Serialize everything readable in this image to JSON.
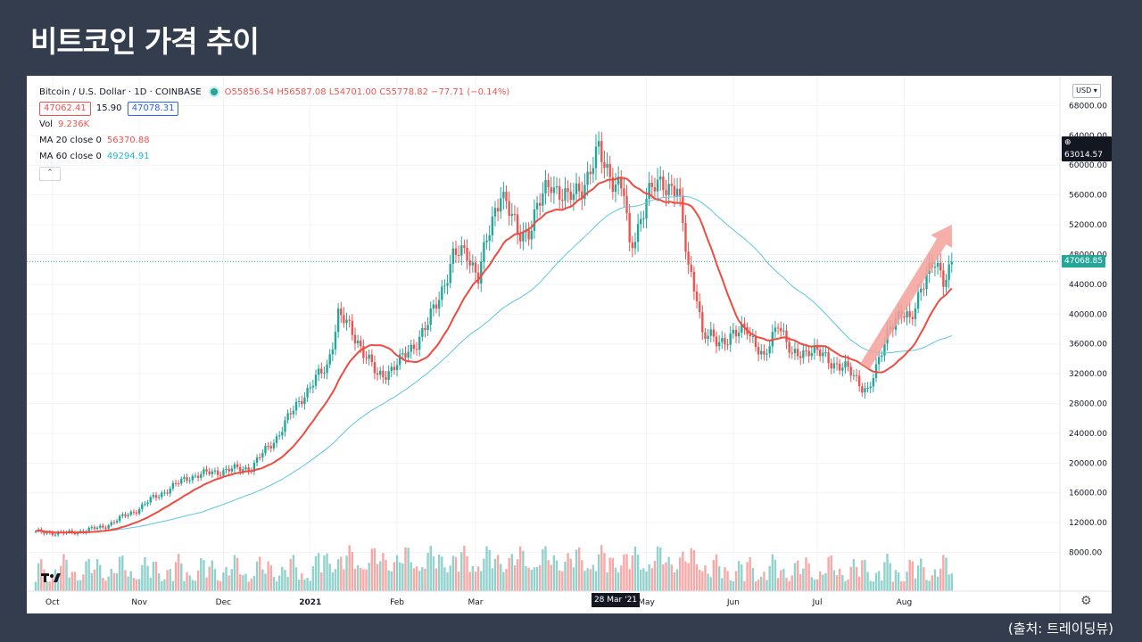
{
  "slide_title": "비트코인 가격 추이",
  "source_note": "(출처: 트레이딩뷰)",
  "legend": {
    "symbol": "Bitcoin / U.S. Dollar · 1D · COINBASE",
    "ohlc": "O55856.54 H56587.08 L54701.00 C55778.82 −77.71 (−0.14%)",
    "bid": "47062.41",
    "spread": "15.90",
    "ask": "47078.31",
    "vol_label": "Vol",
    "vol_value": "9.236K",
    "ma20_label": "MA 20 close 0",
    "ma20_value": "56370.88",
    "ma60_label": "MA 60 close 0",
    "ma60_value": "49294.91",
    "collapse_glyph": "⌃"
  },
  "currency_selector": "USD",
  "crosshair_price": "63014.57",
  "last_price": "47068.85",
  "crosshair_date": "28 Mar '21",
  "colors": {
    "up": "#26a69a",
    "down": "#ef5350",
    "ma20": "#ef4b40",
    "ma60": "#5dc6e0",
    "arrow": "#f4a09a"
  },
  "chart_data": {
    "type": "candlestick",
    "title": "",
    "symbol": "Bitcoin / U.S. Dollar · 1D · COINBASE",
    "y_axis": {
      "ticks": [
        8000,
        12000,
        16000,
        20000,
        24000,
        28000,
        32000,
        36000,
        40000,
        44000,
        48000,
        52000,
        56000,
        60000,
        64000,
        68000
      ],
      "min": 2800,
      "max": 72000
    },
    "x_axis": {
      "ticks": [
        "Oct",
        "Nov",
        "Dec",
        "2021",
        "Feb",
        "Mar",
        "May",
        "Jun",
        "Jul",
        "Aug"
      ]
    },
    "x_tick_days": [
      {
        "label": "Oct",
        "day": 6
      },
      {
        "label": "Nov",
        "day": 37
      },
      {
        "label": "Dec",
        "day": 67
      },
      {
        "label": "2021",
        "day": 98
      },
      {
        "label": "Feb",
        "day": 129
      },
      {
        "label": "Mar",
        "day": 157
      },
      {
        "label": "May",
        "day": 218
      },
      {
        "label": "Jun",
        "day": 249
      },
      {
        "label": "Jul",
        "day": 279
      },
      {
        "label": "Aug",
        "day": 310
      }
    ],
    "date_range": [
      "2020-09-25",
      "2021-08-14"
    ],
    "price_anchors": [
      [
        0,
        10700
      ],
      [
        12,
        10600
      ],
      [
        24,
        11400
      ],
      [
        36,
        13700
      ],
      [
        42,
        15300
      ],
      [
        55,
        18200
      ],
      [
        67,
        19000
      ],
      [
        77,
        19400
      ],
      [
        86,
        23500
      ],
      [
        95,
        28900
      ],
      [
        104,
        33000
      ],
      [
        108,
        40000
      ],
      [
        115,
        36500
      ],
      [
        122,
        31500
      ],
      [
        130,
        33500
      ],
      [
        140,
        38500
      ],
      [
        149,
        47500
      ],
      [
        154,
        48500
      ],
      [
        158,
        45000
      ],
      [
        166,
        57000
      ],
      [
        172,
        50500
      ],
      [
        176,
        51500
      ],
      [
        184,
        58000
      ],
      [
        190,
        55000
      ],
      [
        197,
        58500
      ],
      [
        201,
        61500
      ],
      [
        210,
        56000
      ],
      [
        212,
        48500
      ],
      [
        218,
        55500
      ],
      [
        224,
        58000
      ],
      [
        229,
        56500
      ],
      [
        233,
        46500
      ],
      [
        236,
        43000
      ],
      [
        238,
        37000
      ],
      [
        243,
        36500
      ],
      [
        250,
        37000
      ],
      [
        254,
        38500
      ],
      [
        260,
        33500
      ],
      [
        265,
        39500
      ],
      [
        270,
        34000
      ],
      [
        276,
        35500
      ],
      [
        282,
        34000
      ],
      [
        288,
        33000
      ],
      [
        297,
        29800
      ],
      [
        300,
        32200
      ],
      [
        305,
        39000
      ],
      [
        309,
        39700
      ],
      [
        312,
        39000
      ],
      [
        316,
        44000
      ],
      [
        321,
        46500
      ],
      [
        324,
        45000
      ],
      [
        327,
        47100
      ]
    ],
    "series": [
      {
        "name": "MA 20 close 0",
        "type": "line",
        "color": "#ef4b40"
      },
      {
        "name": "MA 60 close 0",
        "type": "line",
        "color": "#5dc6e0"
      },
      {
        "name": "Vol",
        "type": "bar"
      }
    ],
    "annotations": [
      {
        "type": "arrow",
        "from": [
          296,
          33000
        ],
        "to": [
          327,
          52000
        ]
      }
    ]
  }
}
